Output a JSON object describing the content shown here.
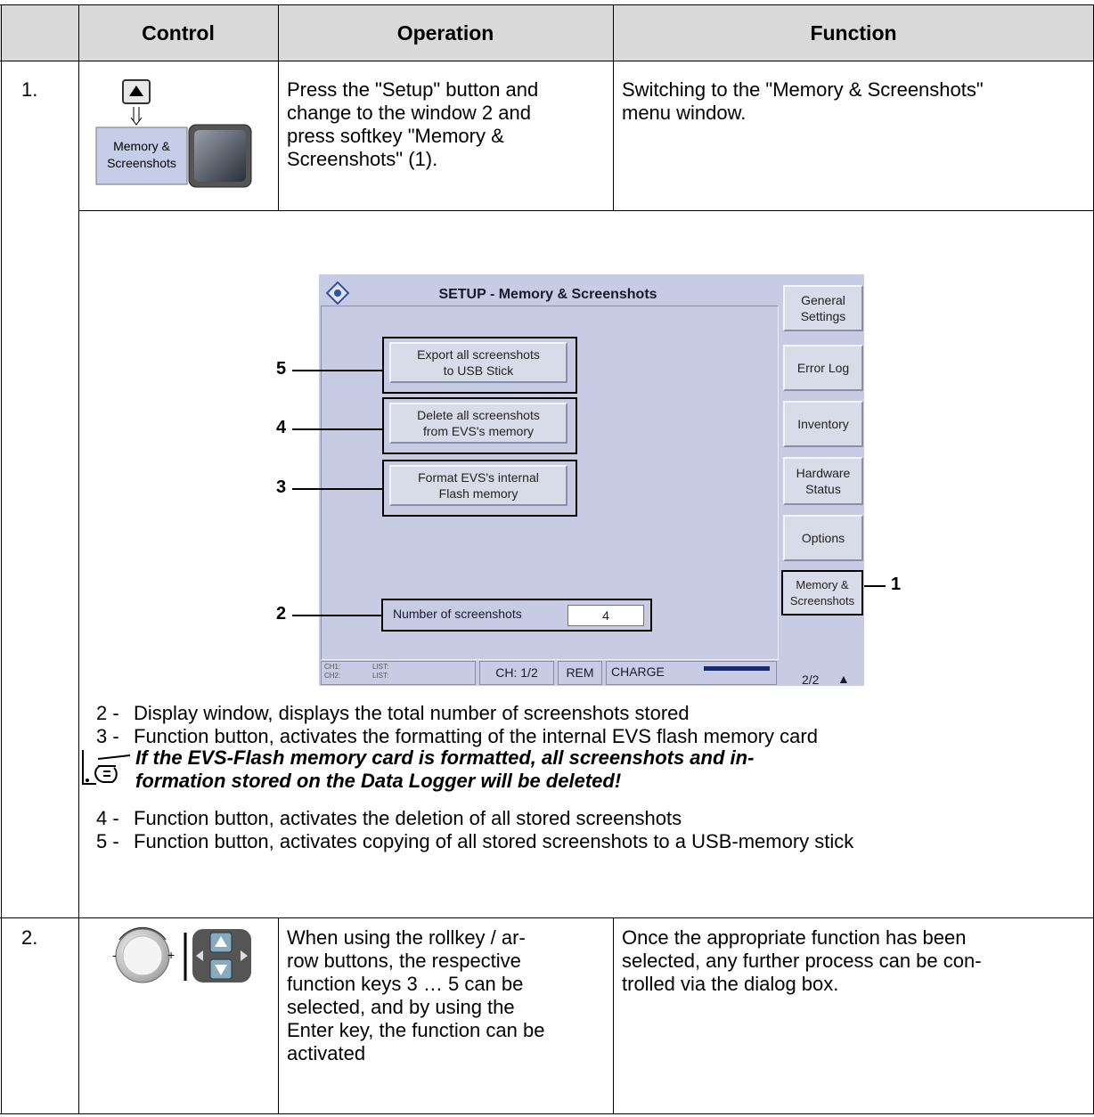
{
  "header": {
    "columns": [
      "Control",
      "Operation",
      "Function"
    ]
  },
  "rows": [
    {
      "number": "1.",
      "control_key": [
        "Memory &",
        "Screenshots"
      ],
      "operation": [
        "Press the \"Setup\" button and",
        "change to the window 2 and",
        "press softkey \"Memory &",
        "Screenshots\" (1)."
      ],
      "function": [
        "Switching to the \"Memory & Screenshots\"",
        "menu window."
      ]
    },
    {
      "number": "2.",
      "operation": [
        "When using the rollkey / ar-",
        "row buttons, the respective",
        "function keys 3 … 5 can be",
        "selected, and by using the",
        "Enter key, the function can be",
        "activated"
      ],
      "function": [
        "Once the appropriate function has been",
        "selected, any further process can be con-",
        "trolled via the dialog box."
      ]
    }
  ],
  "screenshot": {
    "title": "SETUP - Memory & Screenshots",
    "buttons": [
      [
        "Export all screenshots",
        "to USB Stick"
      ],
      [
        "Delete all screenshots",
        "from EVS's memory"
      ],
      [
        "Format EVS's internal",
        "Flash memory"
      ]
    ],
    "button_callouts": [
      "5",
      "4",
      "3"
    ],
    "counter_label": "Number of screenshots",
    "counter_value": "4",
    "counter_callout": "2",
    "softkeys": [
      [
        "General",
        "Settings"
      ],
      [
        "Error Log"
      ],
      [
        "Inventory"
      ],
      [
        "Hardware",
        "Status"
      ],
      [
        "Options"
      ],
      [
        "Memory &",
        "Screenshots"
      ]
    ],
    "softkey_callout": "1",
    "status": {
      "ch1": "CH1:",
      "ch2": "CH2:",
      "list1": "LIST:",
      "list2": "LIST:",
      "channel": "CH: 1/2",
      "rem": "REM",
      "charge": "CHARGE",
      "page": "2/2"
    }
  },
  "notes": [
    {
      "number": "2 -",
      "text": "Display window, displays the total number of screenshots stored"
    },
    {
      "number": "3 -",
      "text": "Function button, activates the formatting of the internal EVS flash memory card"
    }
  ],
  "warning": [
    "If the EVS-Flash memory card is formatted, all screenshots and in-",
    "formation stored on the Data Logger will be deleted!"
  ],
  "notes_after": [
    {
      "number": "4 -",
      "text": "Function button, activates the deletion of all stored screenshots"
    },
    {
      "number": "5 -",
      "text": "Function button, activates copying of all stored screenshots to a USB-memory stick"
    }
  ]
}
